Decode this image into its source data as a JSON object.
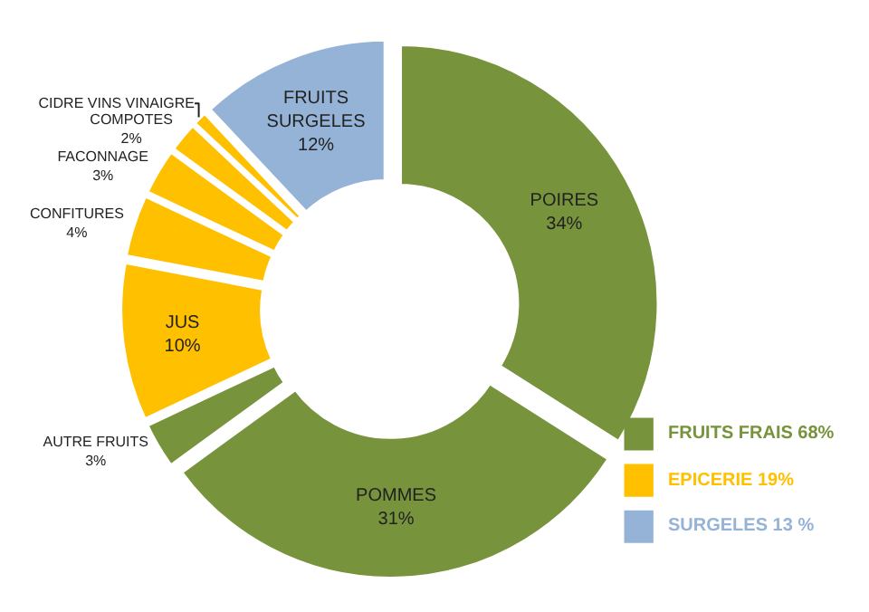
{
  "chart_data": {
    "type": "donut",
    "categories": [
      "POIRES",
      "POMMES",
      "AUTRE FRUITS",
      "JUS",
      "CONFITURES",
      "FACONNAGE",
      "COMPOTES",
      "CIDRE VINS VINAIGRE",
      "FRUITS SURGELES"
    ],
    "values": [
      34,
      31,
      3,
      10,
      4,
      3,
      2,
      1,
      12
    ],
    "value_labels": [
      "34%",
      "31%",
      "3%",
      "10%",
      "4%",
      "3%",
      "2%",
      null,
      "12%"
    ],
    "colors": [
      "#77933c",
      "#77933c",
      "#77933c",
      "#ffc000",
      "#ffc000",
      "#ffc000",
      "#ffc000",
      "#ffc000",
      "#95b3d7"
    ],
    "annotations": [
      "FRUITS FRAIS 68%",
      "EPICERIE 19%",
      "SURGELES 13 %"
    ],
    "legend": false
  }
}
